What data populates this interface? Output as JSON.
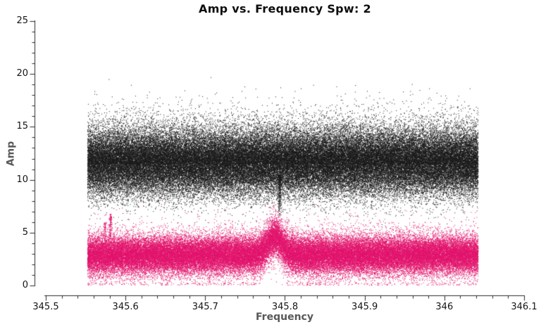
{
  "window": {
    "background": "#ffffff"
  },
  "chart_data": {
    "type": "scatter",
    "title": "Amp vs. Frequency Spw: 2",
    "xlabel": "Frequency",
    "ylabel": "Amp",
    "xlim": [
      345.5,
      346.1
    ],
    "ylim": [
      0,
      25
    ],
    "grid": false,
    "legend": false,
    "x_major_ticks": [
      345.5,
      345.6,
      345.7,
      345.8,
      345.9,
      346.0,
      346.1
    ],
    "x_tick_labels": [
      "345.5",
      "345.6",
      "345.7",
      "345.8",
      "345.9",
      "346",
      "346.1"
    ],
    "x_minor_step": 0.02,
    "y_major_ticks": [
      0,
      5,
      10,
      15,
      20,
      25
    ],
    "y_tick_labels": [
      "0",
      "5",
      "10",
      "15",
      "20",
      "25"
    ],
    "y_minor_step": 1,
    "colors": {
      "title": "#0d0d0d",
      "axis_title": "#585858",
      "tick_label": "#141414",
      "axis_line": "#2a2a2a",
      "background": "#ffffff"
    },
    "series": [
      {
        "name": "black-points",
        "color": "#1b1b1b",
        "marker_px": 1,
        "n_points": 85000,
        "freq_range": [
          345.552,
          346.042
        ],
        "amp_mean": 11.5,
        "amp_sigma_core": 1.5,
        "amp_sigma_tail": 2.2,
        "tail_fraction": 0.15,
        "tail_side": "upper",
        "amp_visible_range": [
          5.5,
          20.5
        ],
        "narrow_spike": {
          "freq": 345.793,
          "freq_sigma": 0.0012,
          "n_points": 260,
          "amp_min": 6.5,
          "amp_max": 10.5
        }
      },
      {
        "name": "magenta-points",
        "color": "#e2146d",
        "marker_px": 1,
        "n_points": 65000,
        "freq_range": [
          345.552,
          346.042
        ],
        "amp_mean": 2.9,
        "amp_sigma_core": 0.85,
        "amp_sigma_tail": 1.4,
        "tail_fraction": 0.15,
        "tail_side": "both",
        "amp_clip_min": 0.05,
        "amp_visible_range": [
          0.1,
          7.5
        ],
        "emission_bump": {
          "center_freq": 345.787,
          "sigma": 0.013,
          "peak_amp_shift": 1.7
        },
        "streaks": [
          {
            "freq": 345.581,
            "freq_sigma": 0.0008,
            "n_points": 110,
            "amp_min": 4.2,
            "amp_max": 6.8
          },
          {
            "freq": 345.574,
            "freq_sigma": 0.0008,
            "n_points": 60,
            "amp_min": 4.2,
            "amp_max": 6.0
          }
        ]
      }
    ]
  }
}
